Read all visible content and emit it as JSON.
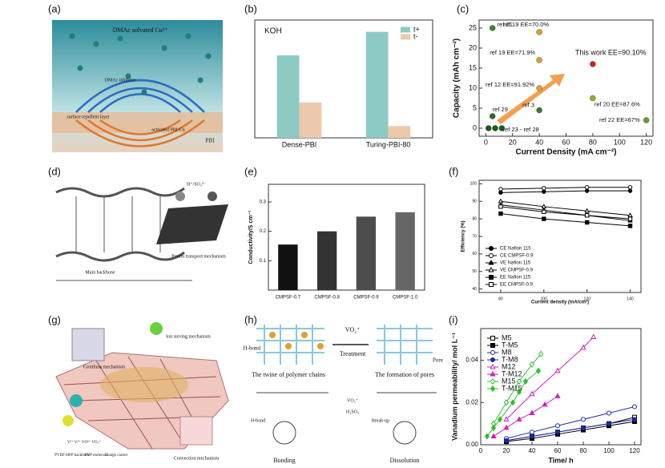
{
  "panel_labels": [
    "(a)",
    "(b)",
    "(c)",
    "(d)",
    "(e)",
    "(f)",
    "(g)",
    "(h)",
    "(i)"
  ],
  "diagrams": {
    "a": {
      "labels": [
        "DMAc solvated Cu²⁺",
        "DMAc inhibitor",
        "surface repellent layer",
        "activated PBI-Cu",
        "PBI"
      ]
    },
    "d": {
      "labels": [
        "H⁺/SO₄²⁻",
        "Main backbone",
        "Proton transport mechanism"
      ]
    },
    "g": {
      "labels": [
        "Grotthuss mechanism",
        "Ion sieving mechanism",
        "Convection mechanism",
        "V²⁺ V³⁺ VO²⁺ VO₂⁺",
        "PVDF-HFP backbone",
        "PVP molecule",
        "Charge carrier"
      ]
    },
    "h": {
      "labels": [
        "H-bond",
        "VO₂⁺",
        "Treatment",
        "Pore",
        "The twine of polymer chains",
        "The formation of pores",
        "VO₂⁺",
        "H₂SO₄",
        "H-bond",
        "Break-up",
        "Bonding",
        "Dissolution"
      ]
    }
  },
  "chart_data": [
    {
      "type": "bar",
      "annotation": "KOH",
      "categories": [
        "Dense-PBI",
        "Turing-PBI-80"
      ],
      "series": [
        {
          "name": "t+",
          "color": "#8ccbc4",
          "values": [
            0.7,
            0.9
          ]
        },
        {
          "name": "t-",
          "color": "#ecc9ad",
          "values": [
            0.3,
            0.1
          ]
        }
      ],
      "ylim": [
        0,
        1
      ],
      "legend": "upper right"
    },
    {
      "type": "scatter",
      "xlabel": "Current Density (mA cm⁻²)",
      "ylabel": "Capacity (mAh cm⁻²)",
      "x": [
        5,
        40,
        40,
        80,
        40,
        80,
        40,
        5,
        2,
        7,
        12,
        120
      ],
      "values": [
        25,
        24,
        17,
        16,
        10,
        7.5,
        4.5,
        3,
        0,
        0,
        0,
        2
      ],
      "point_colors": [
        "#3a8a2a",
        "#e69a2e",
        "#e0a030",
        "#d82020",
        "#e6a030",
        "#8ab030",
        "#3a7a2a",
        "#2a6a2a",
        "#1a5a1a",
        "#1a5a1a",
        "#1a5a1a",
        "#6a9a3a"
      ],
      "point_labels": [
        "ref 21",
        "ref 19 EE=70.0%",
        "ref 19 EE=71.9%",
        "This work EE=90.10%",
        "ref 12 EE=91.92%",
        "ref 20 EE=87.6%",
        "ref 3",
        "ref 29",
        "ref 23 - ref 28",
        null,
        null,
        "ref 22 EE=67%"
      ],
      "xlim": [
        -5,
        125
      ],
      "ylim": [
        -2,
        27
      ],
      "xticks": [
        0,
        20,
        40,
        60,
        80,
        100,
        120
      ],
      "yticks": [
        0,
        5,
        10,
        15,
        20,
        25
      ]
    },
    {
      "type": "bar",
      "ylabel": "Conductivity/S cm⁻¹",
      "categories": [
        "CMPSF-0.7",
        "CMPSF-0.8",
        "CMPSF-0.9",
        "CMPSF-1.0"
      ],
      "values": [
        0.155,
        0.2,
        0.25,
        0.265
      ],
      "colors": [
        "#111111",
        "#333333",
        "#4d4d4d",
        "#666666"
      ],
      "ylim": [
        0,
        0.36
      ],
      "yticks": [
        0.1,
        0.2,
        0.3
      ]
    },
    {
      "type": "line",
      "xlabel": "Current density (mA/cm²)",
      "ylabel": "Efficiency (%)",
      "x": [
        80,
        100,
        120,
        140
      ],
      "series": [
        {
          "name": "CE Nafion 115",
          "color": "#000000",
          "marker": "circle",
          "filled": true,
          "values": [
            95,
            95.5,
            96,
            96
          ]
        },
        {
          "name": "CE CMPSF-0.9",
          "color": "#000000",
          "marker": "circle",
          "filled": false,
          "values": [
            97,
            97.5,
            98,
            98
          ]
        },
        {
          "name": "VE Nafion 115",
          "color": "#000000",
          "marker": "triangle",
          "filled": true,
          "values": [
            88,
            85,
            82,
            79
          ]
        },
        {
          "name": "VE CMPSF-0.9",
          "color": "#000000",
          "marker": "triangle",
          "filled": false,
          "values": [
            90,
            87,
            84.5,
            82
          ]
        },
        {
          "name": "EE Nafion 115",
          "color": "#000000",
          "marker": "square",
          "filled": true,
          "values": [
            83,
            80,
            78,
            76
          ]
        },
        {
          "name": "EE CMPSF-0.9",
          "color": "#000000",
          "marker": "square",
          "filled": false,
          "values": [
            87,
            84,
            82,
            80
          ]
        }
      ],
      "xlim": [
        70,
        145
      ],
      "ylim": [
        38,
        102
      ],
      "xticks": [
        80,
        100,
        120,
        140
      ],
      "yticks": [
        40,
        50,
        60,
        70,
        80,
        90,
        100
      ],
      "legend": "lower left"
    },
    {
      "type": "scatter",
      "xlabel": "Time/ h",
      "ylabel": "Vanadium permeability/ mol L⁻¹",
      "trend_lines": true,
      "series": [
        {
          "name": "M5",
          "color": "#000000",
          "marker": "square",
          "filled": false,
          "x": [
            20,
            40,
            60,
            80,
            100,
            120
          ],
          "values": [
            0.002,
            0.004,
            0.006,
            0.008,
            0.01,
            0.013
          ]
        },
        {
          "name": "T-M5",
          "color": "#000000",
          "marker": "square",
          "filled": true,
          "x": [
            20,
            40,
            60,
            80,
            100,
            120
          ],
          "values": [
            0.0015,
            0.003,
            0.005,
            0.007,
            0.009,
            0.011
          ]
        },
        {
          "name": "M8",
          "color": "#1a2aa0",
          "marker": "circle",
          "filled": false,
          "x": [
            20,
            40,
            60,
            80,
            100,
            120
          ],
          "values": [
            0.003,
            0.006,
            0.009,
            0.012,
            0.015,
            0.018
          ]
        },
        {
          "name": "T-M8",
          "color": "#1a2aa0",
          "marker": "circle",
          "filled": true,
          "x": [
            20,
            40,
            60,
            80,
            100,
            120
          ],
          "values": [
            0.002,
            0.004,
            0.006,
            0.008,
            0.01,
            0.012
          ]
        },
        {
          "name": "M12",
          "color": "#d020c0",
          "marker": "triangle",
          "filled": false,
          "x": [
            20,
            40,
            60,
            80,
            88
          ],
          "values": [
            0.012,
            0.024,
            0.035,
            0.046,
            0.051
          ]
        },
        {
          "name": "T-M12",
          "color": "#d020c0",
          "marker": "triangle",
          "filled": true,
          "x": [
            10,
            20,
            30,
            40,
            50,
            60
          ],
          "values": [
            0.004,
            0.008,
            0.012,
            0.015,
            0.019,
            0.023
          ]
        },
        {
          "name": "M15",
          "color": "#30c030",
          "marker": "diamond",
          "filled": false,
          "x": [
            10,
            20,
            30,
            40,
            47
          ],
          "values": [
            0.01,
            0.02,
            0.03,
            0.038,
            0.043
          ]
        },
        {
          "name": "T-M15",
          "color": "#30c030",
          "marker": "diamond",
          "filled": true,
          "x": [
            5,
            10,
            15,
            25,
            30,
            35,
            45
          ],
          "values": [
            0.004,
            0.008,
            0.012,
            0.02,
            0.025,
            0.03,
            0.035
          ]
        }
      ],
      "xlim": [
        0,
        125
      ],
      "ylim": [
        0,
        0.055
      ],
      "xticks": [
        0,
        20,
        40,
        60,
        80,
        100,
        120
      ],
      "yticks": [
        {
          "value": 0,
          "label": "0.00"
        },
        0.02,
        0.04
      ],
      "legend": "upper left"
    }
  ]
}
